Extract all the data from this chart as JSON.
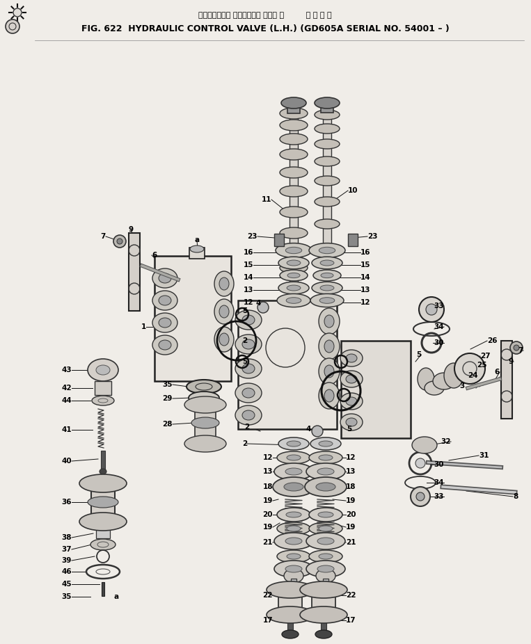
{
  "title_jp": "ハイドロリック コントロール バルブ 左         適 用 号 機",
  "title_en": "FIG. 622  HYDRAULIC CONTROL VALVE (L.H.) (GD605A SERIAL NO. 54001 – )",
  "bg_color": "#f5f5f0",
  "fig_width": 7.63,
  "fig_height": 9.26,
  "dpi": 100
}
